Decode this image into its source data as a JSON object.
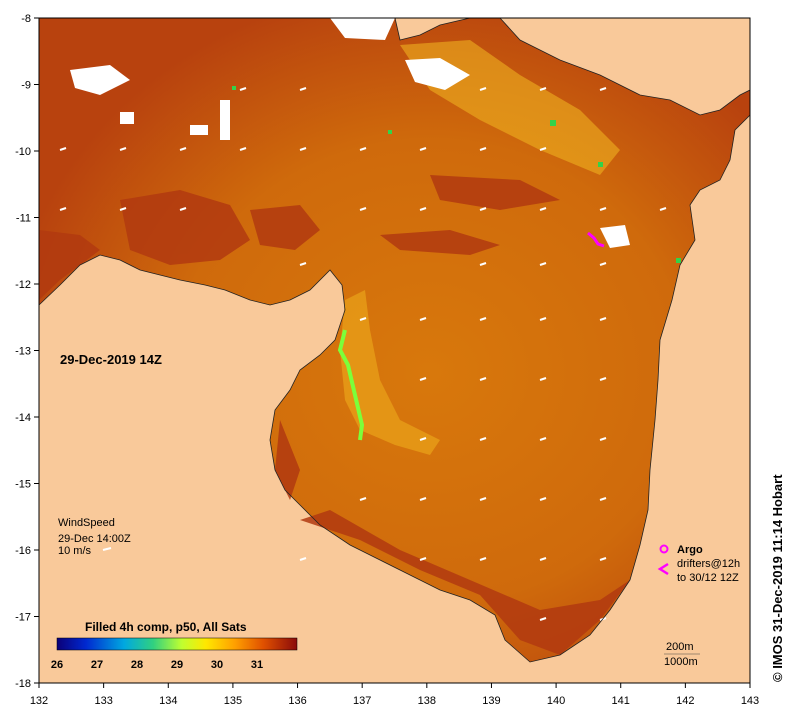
{
  "map": {
    "date_label": "29-Dec-2019 14Z",
    "side_label": "© IMOS 31-Dec-2019 11:14 Hobart",
    "x_ticks": [
      "132",
      "133",
      "134",
      "135",
      "136",
      "137",
      "138",
      "139",
      "140",
      "141",
      "142",
      "143"
    ],
    "y_ticks": [
      "-8",
      "-9",
      "-10",
      "-11",
      "-12",
      "-13",
      "-14",
      "-15",
      "-16",
      "-17",
      "-18"
    ],
    "wind": {
      "title": "WindSpeed",
      "time": "29-Dec 14:00Z",
      "scale": "10 m/s"
    },
    "legend": {
      "argo": "Argo",
      "drifters_line1": "drifters@12h",
      "drifters_line2": "to 30/12 12Z",
      "depth_200": "200m",
      "depth_1000": "1000m"
    },
    "colorbar": {
      "title": "Filled 4h comp, p50, All Sats",
      "ticks": [
        "26",
        "27",
        "28",
        "29",
        "30",
        "31"
      ]
    },
    "colors": {
      "land": "#f9c99a",
      "sea_warm": "#d4700a",
      "sea_hot": "#b23a10",
      "argo": "#ff00ff",
      "cold_edge": "#7cff3a"
    }
  }
}
